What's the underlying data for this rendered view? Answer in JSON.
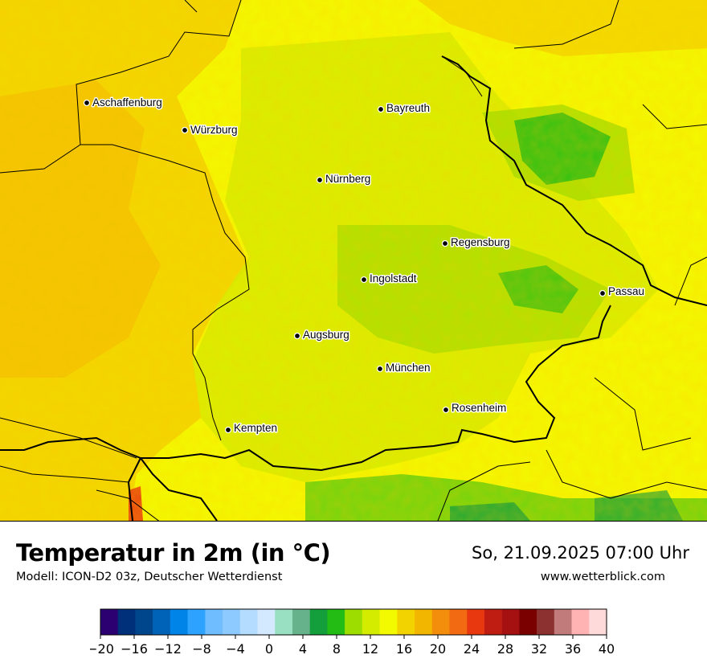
{
  "map": {
    "cities": [
      {
        "name": "Aschaffenburg"
      },
      {
        "name": "Würzburg"
      },
      {
        "name": "Bayreuth"
      },
      {
        "name": "Nürnberg"
      },
      {
        "name": "Regensburg"
      },
      {
        "name": "Ingolstadt"
      },
      {
        "name": "Passau"
      },
      {
        "name": "Augsburg"
      },
      {
        "name": "München"
      },
      {
        "name": "Rosenheim"
      },
      {
        "name": "Kempten"
      }
    ]
  },
  "footer": {
    "title": "Temperatur in 2m (in °C)",
    "model": "Modell: ICON-D2 03z, Deutscher Wetterdienst",
    "datetime": "So, 21.09.2025 07:00 Uhr",
    "website": "www.wetterblick.com"
  },
  "legend": {
    "ticks": [
      "−20",
      "−16",
      "−12",
      "−8",
      "−4",
      "0",
      "4",
      "8",
      "12",
      "16",
      "20",
      "24",
      "28",
      "32",
      "36",
      "40"
    ],
    "colors": [
      "#2d0072",
      "#00307a",
      "#00468c",
      "#0063b7",
      "#0084e8",
      "#2ea2ff",
      "#6fbcff",
      "#8ccaff",
      "#b3dcff",
      "#d3e9ff",
      "#99dfc1",
      "#66b28a",
      "#149f3c",
      "#22bc14",
      "#9ddd00",
      "#d4ec00",
      "#f3fa00",
      "#f2d300",
      "#f2b600",
      "#f28e0c",
      "#f26a12",
      "#e83810",
      "#c01d12",
      "#a51010",
      "#7a0000",
      "#8c3030",
      "#c27b7b",
      "#ffb3b3",
      "#ffdada"
    ]
  }
}
